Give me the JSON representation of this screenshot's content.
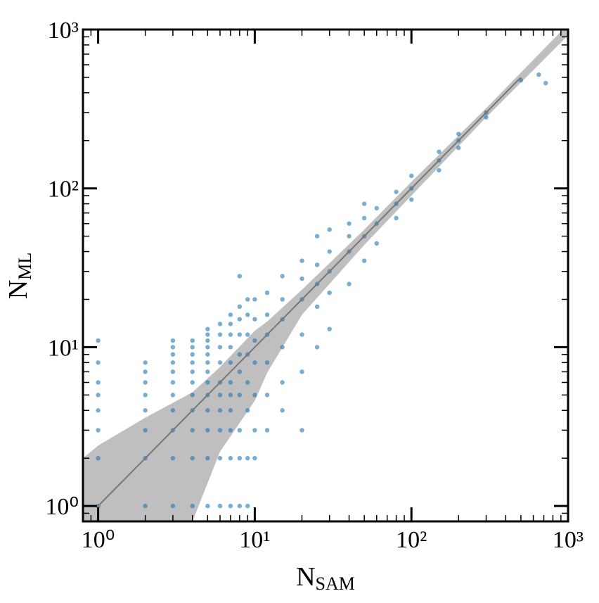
{
  "chart_data": {
    "type": "scatter",
    "xlabel": {
      "text": "N",
      "sub": "SAM"
    },
    "ylabel": {
      "text": "N",
      "sub": "ML"
    },
    "xscale": "log",
    "yscale": "log",
    "xlim": [
      0.8,
      1000
    ],
    "ylim": [
      0.8,
      1000
    ],
    "xticks": [
      {
        "value": 1,
        "label": "10⁰"
      },
      {
        "value": 10,
        "label": "10¹"
      },
      {
        "value": 100,
        "label": "10²"
      },
      {
        "value": 1000,
        "label": "10³"
      }
    ],
    "yticks": [
      {
        "value": 1,
        "label": "10⁰"
      },
      {
        "value": 10,
        "label": "10¹"
      },
      {
        "value": 100,
        "label": "10²"
      },
      {
        "value": 1000,
        "label": "10³"
      }
    ],
    "band": {
      "color": "#bfbfbf",
      "x": [
        0.8,
        1,
        2,
        4,
        6,
        10,
        12,
        20,
        50,
        100,
        300,
        1000
      ],
      "lower": [
        0.4,
        0.45,
        0.6,
        0.8,
        2.2,
        4.6,
        6.9,
        16,
        44,
        90,
        280,
        920
      ],
      "upper": [
        2.0,
        2.4,
        3.6,
        5.2,
        7.5,
        12.7,
        14.5,
        23,
        55,
        110,
        320,
        1080
      ]
    },
    "fit_line": {
      "color": "#777777",
      "x": [
        1,
        500
      ],
      "values": [
        1,
        500
      ]
    },
    "series": [
      {
        "color": "#1f77b4",
        "x": [
          1,
          1,
          1,
          1,
          1,
          1,
          1,
          1,
          2,
          2,
          2,
          2,
          2,
          2,
          2,
          2,
          3,
          3,
          3,
          3,
          3,
          3,
          3,
          3,
          3,
          3,
          3,
          4,
          4,
          4,
          4,
          4,
          4,
          4,
          4,
          4,
          4,
          4,
          5,
          5,
          5,
          5,
          5,
          5,
          5,
          5,
          5,
          5,
          5,
          5,
          5,
          6,
          6,
          6,
          6,
          6,
          6,
          6,
          6,
          6,
          6,
          7,
          7,
          7,
          7,
          7,
          7,
          7,
          7,
          7,
          7,
          7,
          8,
          8,
          8,
          8,
          8,
          8,
          8,
          8,
          8,
          8,
          9,
          9,
          9,
          9,
          9,
          9,
          9,
          9,
          10,
          10,
          10,
          10,
          10,
          10,
          10,
          12,
          12,
          12,
          12,
          12,
          12,
          15,
          15,
          15,
          15,
          15,
          15,
          20,
          20,
          20,
          20,
          20,
          20,
          25,
          25,
          25,
          25,
          25,
          30,
          30,
          30,
          30,
          30,
          40,
          40,
          40,
          40,
          50,
          50,
          50,
          50,
          60,
          60,
          60,
          80,
          80,
          80,
          100,
          100,
          100,
          150,
          150,
          150,
          200,
          200,
          200,
          300,
          300,
          500,
          650,
          720
        ],
        "values": [
          1,
          2,
          3,
          4,
          5,
          6,
          8,
          11,
          1,
          2,
          3,
          4,
          5,
          6,
          7,
          8,
          1,
          2,
          3,
          4,
          5,
          6,
          7,
          8,
          9,
          10,
          11,
          1,
          2,
          3,
          4,
          5,
          6,
          7,
          8,
          9,
          10,
          11,
          1,
          2,
          3,
          4,
          5,
          6,
          7,
          8,
          9,
          10,
          11,
          12,
          13,
          1,
          2,
          3,
          4,
          5,
          6,
          8,
          10,
          12,
          14,
          1,
          2,
          3,
          4,
          5,
          6,
          8,
          10,
          12,
          14,
          16,
          1,
          2,
          3,
          5,
          7,
          9,
          12,
          15,
          18,
          28,
          1,
          2,
          4,
          6,
          9,
          12,
          16,
          20,
          2,
          3,
          5,
          8,
          11,
          15,
          20,
          3,
          5,
          8,
          12,
          16,
          22,
          4,
          6,
          10,
          15,
          20,
          28,
          3,
          7,
          12,
          20,
          27,
          35,
          10,
          18,
          25,
          33,
          50,
          13,
          22,
          30,
          40,
          55,
          25,
          40,
          50,
          60,
          35,
          50,
          65,
          80,
          45,
          60,
          75,
          65,
          80,
          95,
          85,
          100,
          120,
          130,
          150,
          170,
          180,
          200,
          220,
          280,
          300,
          480,
          520,
          460
        ]
      }
    ]
  }
}
